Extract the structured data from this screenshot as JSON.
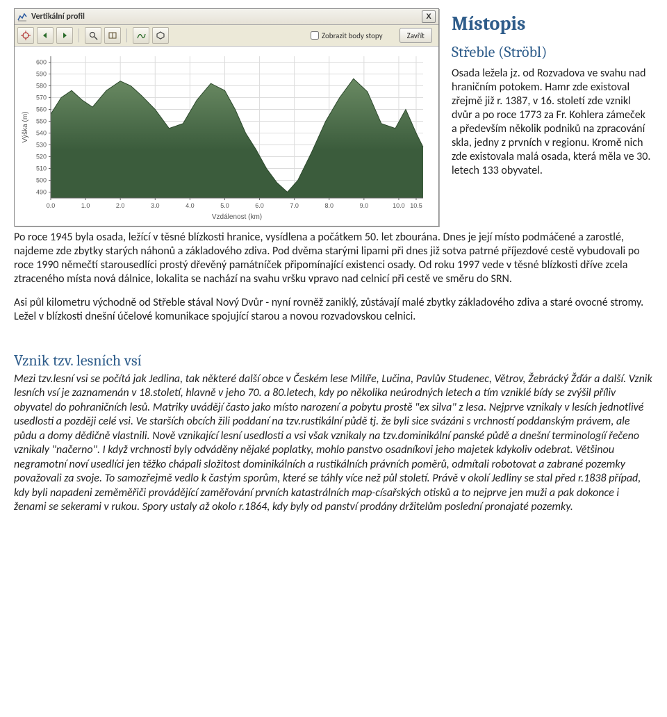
{
  "window": {
    "title": "Vertikální profil",
    "close_label": "X",
    "checkbox_label": "Zobrazit body stopy",
    "checkbox_checked": false,
    "reset_button": "Zavřít"
  },
  "toolbar_icons": [
    "target-icon",
    "left-arrow-icon",
    "right-arrow-icon",
    "zoom-icon",
    "book-icon",
    "curve-icon",
    "hexagon-icon"
  ],
  "chart": {
    "type": "area",
    "background_color": "#ffffff",
    "panel_bg": "#ffffff",
    "grid_color": "#dcdcdc",
    "axis_color": "#666666",
    "label_color": "#555555",
    "title_color": "#555555",
    "label_fontsize": 10,
    "axis_fontsize": 9,
    "area_fill": "#3b5c3c",
    "area_fill_light": "#6a8a63",
    "x_label": "Vzdálenost   (km)",
    "y_label": "Výška (m)",
    "xlim": [
      0,
      10.7
    ],
    "ylim": [
      485,
      605
    ],
    "xticks": [
      0.0,
      1.0,
      2.0,
      3.0,
      4.0,
      5.0,
      6.0,
      7.0,
      8.0,
      9.0,
      10.0,
      10.5
    ],
    "xtick_labels": [
      "0.0",
      "1.0",
      "2.0",
      "3.0",
      "4.0",
      "5.0",
      "6.0",
      "7.0",
      "8.0",
      "9.0",
      "10.0",
      "10.5"
    ],
    "yticks": [
      490,
      500,
      510,
      520,
      530,
      540,
      550,
      560,
      570,
      580,
      590,
      600
    ],
    "series": {
      "x": [
        0.0,
        0.3,
        0.6,
        0.9,
        1.2,
        1.6,
        2.0,
        2.3,
        2.6,
        3.0,
        3.4,
        3.8,
        4.2,
        4.6,
        5.0,
        5.3,
        5.6,
        5.9,
        6.2,
        6.5,
        6.8,
        7.1,
        7.5,
        7.9,
        8.3,
        8.7,
        9.1,
        9.5,
        9.9,
        10.2,
        10.5,
        10.7
      ],
      "y": [
        556,
        570,
        576,
        568,
        562,
        576,
        584,
        580,
        572,
        560,
        544,
        548,
        568,
        582,
        576,
        560,
        540,
        526,
        510,
        498,
        490,
        500,
        524,
        550,
        570,
        586,
        575,
        548,
        544,
        560,
        540,
        528
      ]
    }
  },
  "doc": {
    "h1": "Místopis",
    "h2": "Střeble (Ströbl)",
    "intro": "Osada ležela jz. od Rozvadova ve svahu nad hraničním potokem. Hamr zde existoval zřejmě již r. 1387, v 16. století zde vznikl dvůr a po roce 1773 za Fr. Kohlera zámeček a především několik podniků na zpracování skla, jedny z prvních v regionu. Kromě nich zde existovala malá osada, která měla ve 30. letech 133 obyvatel.",
    "p1": "Po roce 1945 byla osada, ležící v těsné blízkosti hranice, vysídlena a počátkem 50. let zbourána. Dnes je její místo podmáčené a zarostlé, najdeme zde zbytky starých náhonů a základového zdiva. Pod dvěma starými lipami při dnes již sotva patrné příjezdové cestě vybudovali po roce 1990 němečtí starousedlíci prostý dřevěný památníček připomínající existenci osady. Od roku 1997 vede v těsné blízkosti dříve zcela ztraceného místa nová dálnice, lokalita se nachází na svahu vršku vpravo nad celnicí při cestě ve směru do SRN.",
    "p2": "Asi půl kilometru východně od Střeble stával Nový Dvůr - nyní rovněž zaniklý, zůstávají malé zbytky základového zdiva a staré ovocné stromy. Ležel v blízkosti dnešní účelové komunikace spojující starou a novou rozvadovskou celnici.",
    "h3": "Vznik tzv. lesních vsí",
    "p3": "Mezi tzv.lesní vsi se počítá jak Jedlina, tak některé další obce v Českém lese Milíře, Lučina, Pavlův Studenec, Větrov, Žebrácký Žďár a další. Vznik lesních vsí je zaznamenán v 18.století, hlavně v jeho 70. a 80.letech, kdy po několika neúrodných letech a tím vzniklé bídy se zvýšil příliv obyvatel do pohraničních lesů. Matriky uvádějí často jako místo narození a pobytu prostě \"ex silva\" z lesa. Nejprve vznikaly v lesích jednotlivé usedlosti a později celé vsi. Ve starších obcích žili poddaní na tzv.rustikální půdě tj. že byli sice svázáni s vrchností poddanským právem, ale půdu a domy dědičně vlastnili. Nově vznikající lesní usedlosti a vsi však vznikaly na tzv.dominikální panské půdě a dnešní terminologíí řečeno vznikaly \"načerno\". I když vrchnosti byly odváděny nějaké poplatky, mohlo panstvo osadníkovi jeho majetek kdykoliv odebrat. Většinou negramotní noví usedlíci jen těžko chápali složitost dominikálních a rustikálních právních poměrů, odmítali robotovat a zabrané pozemky považovali za svoje. To samozřejmě vedlo k častým sporům, které se táhly více než půl století. Právě v okolí Jedliny se stal před r.1838 případ, kdy byli napadeni zeměměřiči provádějící zaměřování prvních katastrálních map-císařských otisků a to nejprve jen muži a pak dokonce i ženami se sekerami v rukou. Spory ustaly až okolo r.1864, kdy byly od panství prodány držitelům poslední pronajaté pozemky."
  },
  "colors": {
    "heading": "#2e5c8a",
    "body": "#222222"
  }
}
